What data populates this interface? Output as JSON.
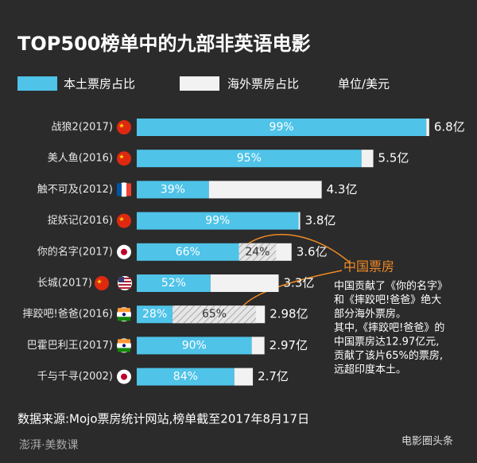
{
  "chart_data": {
    "type": "bar",
    "title": "TOP500榜单中的九部非英语电影",
    "unit_note": "单位/美元",
    "source": "数据来源:Mojo票房统计网站,榜单截至2017年8月17日",
    "watermarks": [
      "澎湃·美数课",
      "电影圈头条"
    ],
    "categories": [
      "战狼2(2017)",
      "美人鱼(2016)",
      "触不可及(2012)",
      "捉妖记(2016)",
      "你的名字(2017)",
      "长城(2017)",
      "摔跤吧!爸爸(2016)",
      "巴霍巴利王(2017)",
      "千与千寻(2002)"
    ],
    "values": [
      6.8,
      5.5,
      4.3,
      3.8,
      3.6,
      3.3,
      2.98,
      2.97,
      2.7
    ],
    "value_labels": [
      "6.8亿",
      "5.5亿",
      "4.3亿",
      "3.8亿",
      "3.6亿",
      "3.3亿",
      "2.98亿",
      "2.97亿",
      "2.7亿"
    ],
    "series": [
      {
        "name": "本土票房占比",
        "color": "#4fc3e8",
        "values": [
          99,
          95,
          39,
          99,
          66,
          52,
          28,
          90,
          84
        ],
        "value_labels": [
          "99%",
          "95%",
          "39%",
          "99%",
          "66%",
          "52%",
          "28%",
          "90%",
          "84%"
        ]
      },
      {
        "name": "海外票房占比",
        "color": "#f2f2f2",
        "values": [
          1,
          5,
          61,
          1,
          34,
          48,
          72,
          10,
          16
        ]
      },
      {
        "name": "中国票房",
        "color": "#d0d0d0",
        "values": [
          null,
          null,
          null,
          null,
          24,
          null,
          65,
          null,
          null
        ],
        "value_labels": [
          null,
          null,
          null,
          null,
          "24%",
          null,
          "65%",
          null,
          null
        ]
      }
    ],
    "annotation": {
      "lines": [
        "中国贡献了《你的名字》",
        "和《摔跤吧!爸爸》绝大",
        "部分海外票房。",
        "其中,《摔跤吧!爸爸》的",
        "中国票房达12.97亿元,",
        "贡献了该片65%的票房,",
        "远超印度本土。"
      ]
    }
  }
}
